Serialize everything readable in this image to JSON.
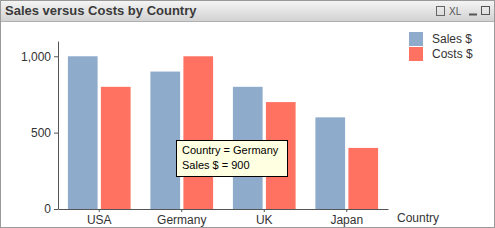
{
  "chart_data": {
    "type": "bar",
    "title": "Sales versus Costs by Country",
    "categories": [
      "USA",
      "Germany",
      "UK",
      "Japan"
    ],
    "series": [
      {
        "name": "Sales $",
        "color": "#8fabcc",
        "values": [
          1000,
          900,
          800,
          600
        ]
      },
      {
        "name": "Costs $",
        "color": "#ff7262",
        "values": [
          800,
          1000,
          700,
          400
        ]
      }
    ],
    "x_label": "Country",
    "ylim": [
      0,
      1100
    ],
    "yticks": [
      0,
      500,
      {
        "value": 1000,
        "label": "1,000"
      }
    ],
    "grid": false,
    "legend": "top-right",
    "annotations": [
      "Country = Germany",
      "Sales $ = 900",
      "XL"
    ]
  }
}
